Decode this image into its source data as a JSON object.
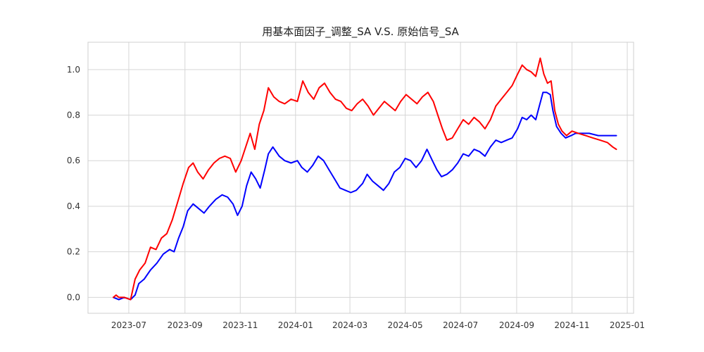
{
  "chart_data": {
    "type": "line",
    "title": "用基本面因子_调整_SA V.S. 原始信号_SA",
    "xlabel": "",
    "ylabel": "",
    "x_axis_kind": "date",
    "xlim": [
      "2023-05-17",
      "2025-01-08"
    ],
    "ylim": [
      -0.07,
      1.12
    ],
    "grid": true,
    "legend": "none",
    "y_ticks": [
      0.0,
      0.2,
      0.4,
      0.6,
      0.8,
      1.0
    ],
    "y_tick_labels": [
      "0.0",
      "0.2",
      "0.4",
      "0.6",
      "0.8",
      "1.0"
    ],
    "x_ticks": [
      "2023-07-01",
      "2023-09-01",
      "2023-11-01",
      "2024-01-01",
      "2024-03-01",
      "2024-05-01",
      "2024-07-01",
      "2024-09-01",
      "2024-11-01",
      "2025-01-01"
    ],
    "x_tick_labels": [
      "2023-07",
      "2023-09",
      "2023-11",
      "2024-01",
      "2024-03",
      "2024-05",
      "2024-07",
      "2024-09",
      "2024-11",
      "2025-01"
    ],
    "series": [
      {
        "color": "#0000ff",
        "points": [
          [
            "2023-06-14",
            0.0
          ],
          [
            "2023-06-20",
            -0.01
          ],
          [
            "2023-06-26",
            0.0
          ],
          [
            "2023-07-03",
            -0.01
          ],
          [
            "2023-07-08",
            0.01
          ],
          [
            "2023-07-12",
            0.06
          ],
          [
            "2023-07-18",
            0.08
          ],
          [
            "2023-07-25",
            0.12
          ],
          [
            "2023-08-01",
            0.15
          ],
          [
            "2023-08-08",
            0.19
          ],
          [
            "2023-08-15",
            0.21
          ],
          [
            "2023-08-20",
            0.2
          ],
          [
            "2023-08-25",
            0.26
          ],
          [
            "2023-08-30",
            0.31
          ],
          [
            "2023-09-04",
            0.38
          ],
          [
            "2023-09-10",
            0.41
          ],
          [
            "2023-09-16",
            0.39
          ],
          [
            "2023-09-22",
            0.37
          ],
          [
            "2023-09-28",
            0.4
          ],
          [
            "2023-10-05",
            0.43
          ],
          [
            "2023-10-12",
            0.45
          ],
          [
            "2023-10-18",
            0.44
          ],
          [
            "2023-10-24",
            0.41
          ],
          [
            "2023-10-29",
            0.36
          ],
          [
            "2023-11-03",
            0.4
          ],
          [
            "2023-11-08",
            0.49
          ],
          [
            "2023-11-13",
            0.55
          ],
          [
            "2023-11-18",
            0.52
          ],
          [
            "2023-11-23",
            0.48
          ],
          [
            "2023-11-28",
            0.56
          ],
          [
            "2023-12-02",
            0.63
          ],
          [
            "2023-12-07",
            0.66
          ],
          [
            "2023-12-14",
            0.62
          ],
          [
            "2023-12-20",
            0.6
          ],
          [
            "2023-12-27",
            0.59
          ],
          [
            "2024-01-03",
            0.6
          ],
          [
            "2024-01-08",
            0.57
          ],
          [
            "2024-01-14",
            0.55
          ],
          [
            "2024-01-20",
            0.58
          ],
          [
            "2024-01-26",
            0.62
          ],
          [
            "2024-02-01",
            0.6
          ],
          [
            "2024-02-07",
            0.56
          ],
          [
            "2024-02-13",
            0.52
          ],
          [
            "2024-02-19",
            0.48
          ],
          [
            "2024-02-25",
            0.47
          ],
          [
            "2024-03-02",
            0.46
          ],
          [
            "2024-03-08",
            0.47
          ],
          [
            "2024-03-15",
            0.5
          ],
          [
            "2024-03-20",
            0.54
          ],
          [
            "2024-03-26",
            0.51
          ],
          [
            "2024-04-01",
            0.49
          ],
          [
            "2024-04-07",
            0.47
          ],
          [
            "2024-04-13",
            0.5
          ],
          [
            "2024-04-19",
            0.55
          ],
          [
            "2024-04-25",
            0.57
          ],
          [
            "2024-05-01",
            0.61
          ],
          [
            "2024-05-07",
            0.6
          ],
          [
            "2024-05-13",
            0.57
          ],
          [
            "2024-05-19",
            0.6
          ],
          [
            "2024-05-25",
            0.65
          ],
          [
            "2024-05-31",
            0.6
          ],
          [
            "2024-06-05",
            0.56
          ],
          [
            "2024-06-10",
            0.53
          ],
          [
            "2024-06-16",
            0.54
          ],
          [
            "2024-06-22",
            0.56
          ],
          [
            "2024-06-28",
            0.59
          ],
          [
            "2024-07-04",
            0.63
          ],
          [
            "2024-07-10",
            0.62
          ],
          [
            "2024-07-16",
            0.65
          ],
          [
            "2024-07-22",
            0.64
          ],
          [
            "2024-07-28",
            0.62
          ],
          [
            "2024-08-03",
            0.66
          ],
          [
            "2024-08-09",
            0.69
          ],
          [
            "2024-08-15",
            0.68
          ],
          [
            "2024-08-21",
            0.69
          ],
          [
            "2024-08-27",
            0.7
          ],
          [
            "2024-09-02",
            0.74
          ],
          [
            "2024-09-07",
            0.79
          ],
          [
            "2024-09-12",
            0.78
          ],
          [
            "2024-09-17",
            0.8
          ],
          [
            "2024-09-22",
            0.78
          ],
          [
            "2024-09-26",
            0.84
          ],
          [
            "2024-09-30",
            0.9
          ],
          [
            "2024-10-04",
            0.9
          ],
          [
            "2024-10-08",
            0.89
          ],
          [
            "2024-10-11",
            0.82
          ],
          [
            "2024-10-15",
            0.75
          ],
          [
            "2024-10-20",
            0.72
          ],
          [
            "2024-10-25",
            0.7
          ],
          [
            "2024-10-31",
            0.71
          ],
          [
            "2024-11-05",
            0.72
          ],
          [
            "2024-11-12",
            0.72
          ],
          [
            "2024-11-20",
            0.72
          ],
          [
            "2024-11-30",
            0.71
          ],
          [
            "2024-12-10",
            0.71
          ],
          [
            "2024-12-20",
            0.71
          ]
        ]
      },
      {
        "color": "#ff0000",
        "points": [
          [
            "2023-06-14",
            0.0
          ],
          [
            "2023-06-17",
            0.01
          ],
          [
            "2023-06-20",
            0.0
          ],
          [
            "2023-06-26",
            0.0
          ],
          [
            "2023-07-03",
            -0.01
          ],
          [
            "2023-07-08",
            0.08
          ],
          [
            "2023-07-13",
            0.12
          ],
          [
            "2023-07-19",
            0.15
          ],
          [
            "2023-07-25",
            0.22
          ],
          [
            "2023-07-31",
            0.21
          ],
          [
            "2023-08-06",
            0.26
          ],
          [
            "2023-08-12",
            0.28
          ],
          [
            "2023-08-18",
            0.34
          ],
          [
            "2023-08-24",
            0.42
          ],
          [
            "2023-08-30",
            0.5
          ],
          [
            "2023-09-05",
            0.57
          ],
          [
            "2023-09-10",
            0.59
          ],
          [
            "2023-09-15",
            0.55
          ],
          [
            "2023-09-21",
            0.52
          ],
          [
            "2023-09-27",
            0.56
          ],
          [
            "2023-10-03",
            0.59
          ],
          [
            "2023-10-09",
            0.61
          ],
          [
            "2023-10-15",
            0.62
          ],
          [
            "2023-10-21",
            0.61
          ],
          [
            "2023-10-27",
            0.55
          ],
          [
            "2023-11-02",
            0.6
          ],
          [
            "2023-11-07",
            0.66
          ],
          [
            "2023-11-12",
            0.72
          ],
          [
            "2023-11-17",
            0.65
          ],
          [
            "2023-11-22",
            0.76
          ],
          [
            "2023-11-27",
            0.82
          ],
          [
            "2023-12-02",
            0.92
          ],
          [
            "2023-12-08",
            0.88
          ],
          [
            "2023-12-14",
            0.86
          ],
          [
            "2023-12-20",
            0.85
          ],
          [
            "2023-12-27",
            0.87
          ],
          [
            "2024-01-03",
            0.86
          ],
          [
            "2024-01-09",
            0.95
          ],
          [
            "2024-01-15",
            0.9
          ],
          [
            "2024-01-21",
            0.87
          ],
          [
            "2024-01-27",
            0.92
          ],
          [
            "2024-02-02",
            0.94
          ],
          [
            "2024-02-08",
            0.9
          ],
          [
            "2024-02-14",
            0.87
          ],
          [
            "2024-02-20",
            0.86
          ],
          [
            "2024-02-26",
            0.83
          ],
          [
            "2024-03-03",
            0.82
          ],
          [
            "2024-03-09",
            0.85
          ],
          [
            "2024-03-15",
            0.87
          ],
          [
            "2024-03-21",
            0.84
          ],
          [
            "2024-03-27",
            0.8
          ],
          [
            "2024-04-02",
            0.83
          ],
          [
            "2024-04-08",
            0.86
          ],
          [
            "2024-04-14",
            0.84
          ],
          [
            "2024-04-20",
            0.82
          ],
          [
            "2024-04-26",
            0.86
          ],
          [
            "2024-05-02",
            0.89
          ],
          [
            "2024-05-08",
            0.87
          ],
          [
            "2024-05-14",
            0.85
          ],
          [
            "2024-05-20",
            0.88
          ],
          [
            "2024-05-26",
            0.9
          ],
          [
            "2024-06-01",
            0.86
          ],
          [
            "2024-06-06",
            0.8
          ],
          [
            "2024-06-11",
            0.74
          ],
          [
            "2024-06-16",
            0.69
          ],
          [
            "2024-06-22",
            0.7
          ],
          [
            "2024-06-28",
            0.74
          ],
          [
            "2024-07-04",
            0.78
          ],
          [
            "2024-07-10",
            0.76
          ],
          [
            "2024-07-16",
            0.79
          ],
          [
            "2024-07-22",
            0.77
          ],
          [
            "2024-07-28",
            0.74
          ],
          [
            "2024-08-03",
            0.78
          ],
          [
            "2024-08-09",
            0.84
          ],
          [
            "2024-08-15",
            0.87
          ],
          [
            "2024-08-21",
            0.9
          ],
          [
            "2024-08-27",
            0.93
          ],
          [
            "2024-09-02",
            0.98
          ],
          [
            "2024-09-07",
            1.02
          ],
          [
            "2024-09-12",
            1.0
          ],
          [
            "2024-09-17",
            0.99
          ],
          [
            "2024-09-22",
            0.97
          ],
          [
            "2024-09-27",
            1.05
          ],
          [
            "2024-10-01",
            0.98
          ],
          [
            "2024-10-05",
            0.94
          ],
          [
            "2024-10-09",
            0.95
          ],
          [
            "2024-10-13",
            0.82
          ],
          [
            "2024-10-17",
            0.76
          ],
          [
            "2024-10-21",
            0.73
          ],
          [
            "2024-10-26",
            0.71
          ],
          [
            "2024-11-01",
            0.73
          ],
          [
            "2024-11-08",
            0.72
          ],
          [
            "2024-11-16",
            0.71
          ],
          [
            "2024-11-24",
            0.7
          ],
          [
            "2024-12-02",
            0.69
          ],
          [
            "2024-12-10",
            0.68
          ],
          [
            "2024-12-16",
            0.66
          ],
          [
            "2024-12-20",
            0.65
          ]
        ]
      }
    ]
  }
}
